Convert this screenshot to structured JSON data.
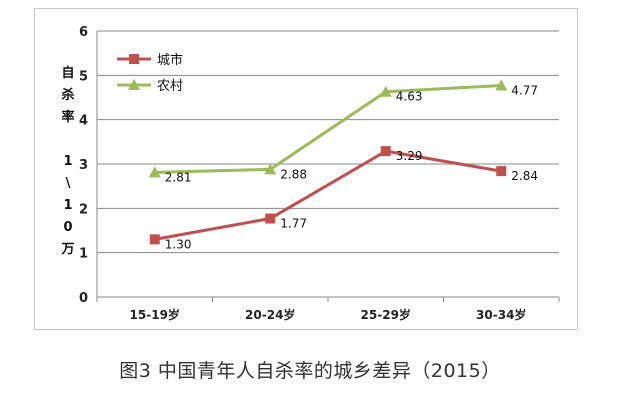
{
  "caption": "图3 中国青年人自杀率的城乡差异（2015）",
  "chart_data": {
    "type": "line",
    "categories": [
      "15-19岁",
      "20-24岁",
      "25-29岁",
      "30-34岁"
    ],
    "ylabel_chars": [
      "自",
      "杀",
      "率",
      "",
      "1",
      "\\",
      "1",
      "0",
      "万"
    ],
    "ylim": [
      0,
      6
    ],
    "yticks": [
      0,
      1,
      2,
      3,
      4,
      5,
      6
    ],
    "grid": true,
    "legend_position": "top-left",
    "series": [
      {
        "name": "城市",
        "values": [
          1.3,
          1.77,
          3.29,
          2.84
        ],
        "labels": [
          "1.30",
          "1.77",
          "3.29",
          "2.84"
        ],
        "color": "#c0504d",
        "marker": "square"
      },
      {
        "name": "农村",
        "values": [
          2.81,
          2.88,
          4.63,
          4.77
        ],
        "labels": [
          "2.81",
          "2.88",
          "4.63",
          "4.77"
        ],
        "color": "#9bbb59",
        "marker": "triangle"
      }
    ]
  }
}
